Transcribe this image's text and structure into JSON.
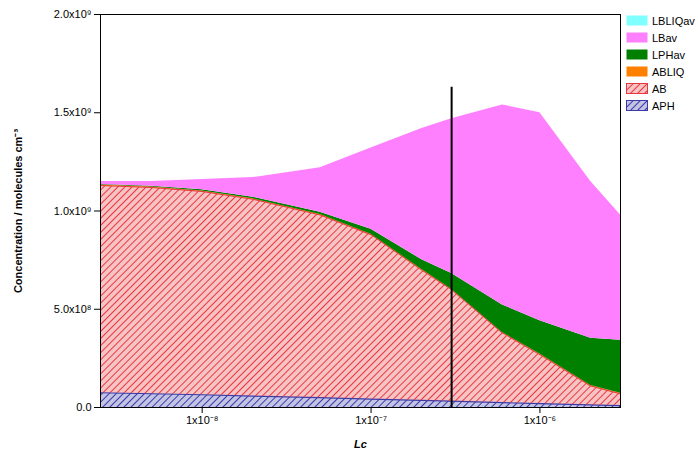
{
  "chart_data": {
    "type": "area",
    "stacked": true,
    "log": "x",
    "legend": "top-right",
    "x_label": "Lc",
    "y_label": "Concentration / molecules cm⁻³",
    "xlim": [
      2.5e-09,
      3e-06
    ],
    "xticks": [
      {
        "value": 1e-08,
        "label": "1x10⁻⁸"
      },
      {
        "value": 1e-07,
        "label": "1x10⁻⁷"
      },
      {
        "value": 1e-06,
        "label": "1x10⁻⁶"
      }
    ],
    "ylim": [
      0,
      2000000000
    ],
    "yticks": [
      {
        "value": 0,
        "label": "0.0"
      },
      {
        "value": 500000000,
        "label": "5.0x10⁸"
      },
      {
        "value": 1000000000,
        "label": "1.0x10⁹"
      },
      {
        "value": 1500000000,
        "label": "1.5x10⁹"
      },
      {
        "value": 2000000000,
        "label": "2.0x10⁹"
      }
    ],
    "x": [
      2.5e-09,
      5e-09,
      1e-08,
      2e-08,
      5e-08,
      1e-07,
      2e-07,
      3e-07,
      6e-07,
      1e-06,
      2e-06,
      3e-06
    ],
    "series": [
      {
        "name": "APH",
        "color": "#3a3aa8",
        "line_style": "hatched",
        "values": [
          75000000,
          70000000,
          65000000,
          58000000,
          50000000,
          43000000,
          36000000,
          32000000,
          25000000,
          20000000,
          13000000,
          10000000
        ]
      },
      {
        "name": "AB",
        "color": "#e8383d",
        "line_style": "hatched",
        "values": [
          1055000000,
          1050000000,
          1035000000,
          1002000000,
          930000000,
          837000000,
          664000000,
          568000000,
          355000000,
          250000000,
          97000000,
          60000000
        ]
      },
      {
        "name": "ABLIQ",
        "color": "#ff8000",
        "line_style": "solid",
        "values": [
          2000000,
          2000000,
          2000000,
          2000000,
          2000000,
          2000000,
          2000000,
          2000000,
          2000000,
          2000000,
          2000000,
          2000000
        ]
      },
      {
        "name": "LPHav",
        "color": "#008000",
        "line_style": "solid",
        "values": [
          3000000,
          4000000,
          6000000,
          8000000,
          12000000,
          25000000,
          50000000,
          80000000,
          140000000,
          170000000,
          240000000,
          270000000
        ]
      },
      {
        "name": "LBav",
        "color": "#ff80ff",
        "line_style": "solid",
        "values": [
          15000000,
          24000000,
          52000000,
          100000000,
          226000000,
          413000000,
          668000000,
          788000000,
          1018000000,
          1058000000,
          798000000,
          638000000
        ]
      },
      {
        "name": "LBLIQav",
        "color": "#80ffff",
        "line_style": "solid",
        "values": [
          0,
          0,
          0,
          0,
          0,
          0,
          0,
          0,
          0,
          0,
          0,
          0
        ]
      }
    ],
    "vline": {
      "x": 3e-07,
      "y": [
        0,
        1630000000
      ]
    }
  }
}
